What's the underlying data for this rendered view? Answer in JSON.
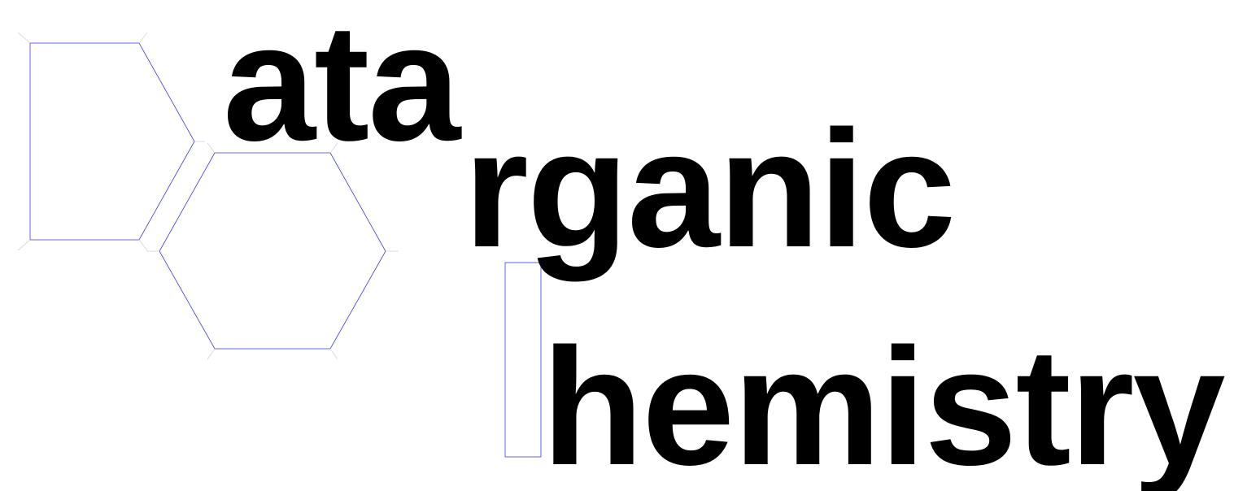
{
  "logo": {
    "word_1": "ata",
    "word_2": "rganic",
    "word_3": "hemistry",
    "text_color": "#000000",
    "outline_color": "#3a3adf",
    "background": "#ffffff"
  }
}
